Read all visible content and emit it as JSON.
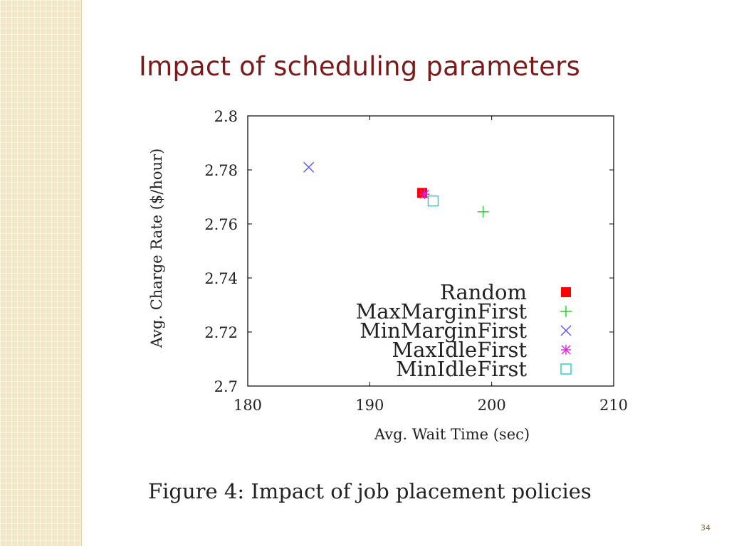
{
  "slide": {
    "title": "Impact of scheduling parameters",
    "caption": "Figure 4:  Impact of job placement policies",
    "page_number": "34"
  },
  "colors": {
    "title": "#7a1a1a",
    "strip": "#f3e7c4",
    "Random": "#ff0000",
    "MaxMarginFirst": "#22cc22",
    "MinMarginFirst": "#5555ff",
    "MaxIdleFirst": "#dd22dd",
    "MinIdleFirst": "#22cccc"
  },
  "chart_data": {
    "type": "scatter",
    "title": "",
    "xlabel": "Avg. Wait Time (sec)",
    "ylabel": "Avg. Charge Rate ($/hour)",
    "xlim": [
      180,
      210
    ],
    "ylim": [
      2.7,
      2.8
    ],
    "x_ticks": [
      "180",
      "190",
      "200",
      "210"
    ],
    "y_ticks": [
      "2.7",
      "2.72",
      "2.74",
      "2.76",
      "2.78",
      "2.8"
    ],
    "grid": false,
    "legend_position": "bottom-right",
    "series": [
      {
        "name": "Random",
        "marker": "filled-square",
        "color": "#ff0000",
        "points": [
          [
            194.3,
            2.7715
          ]
        ]
      },
      {
        "name": "MaxMarginFirst",
        "marker": "plus",
        "color": "#22cc22",
        "points": [
          [
            199.3,
            2.7645
          ]
        ]
      },
      {
        "name": "MinMarginFirst",
        "marker": "x",
        "color": "#5555ff",
        "points": [
          [
            185.0,
            2.781
          ]
        ]
      },
      {
        "name": "MaxIdleFirst",
        "marker": "asterisk",
        "color": "#dd22dd",
        "points": [
          [
            194.5,
            2.771
          ]
        ]
      },
      {
        "name": "MinIdleFirst",
        "marker": "open-square",
        "color": "#22cccc",
        "points": [
          [
            195.2,
            2.7685
          ]
        ]
      }
    ]
  }
}
